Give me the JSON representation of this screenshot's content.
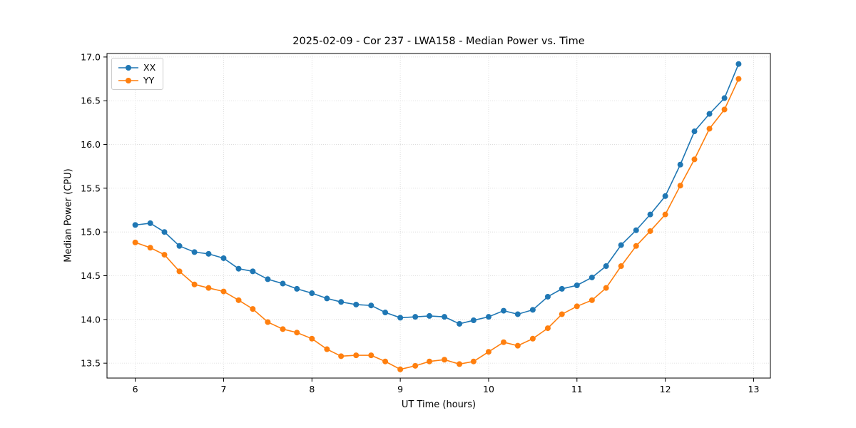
{
  "chart_data": {
    "type": "line",
    "title": "2025-02-09 - Cor 237 - LWA158 - Median Power vs. Time",
    "xlabel": "UT Time (hours)",
    "ylabel": "Median Power (CPU)",
    "xlim": [
      5.68,
      13.19
    ],
    "ylim": [
      13.33,
      17.04
    ],
    "xticks": [
      6,
      7,
      8,
      9,
      10,
      11,
      12,
      13
    ],
    "xtick_labels": [
      "6",
      "7",
      "8",
      "9",
      "10",
      "11",
      "12",
      "13"
    ],
    "yticks": [
      13.5,
      14.0,
      14.5,
      15.0,
      15.5,
      16.0,
      16.5,
      17.0
    ],
    "ytick_labels": [
      "13.5",
      "14.0",
      "14.5",
      "15.0",
      "15.5",
      "16.0",
      "16.5",
      "17.0"
    ],
    "grid": true,
    "legend_position": "upper left",
    "x": [
      6.0,
      6.17,
      6.33,
      6.5,
      6.67,
      6.83,
      7.0,
      7.17,
      7.33,
      7.5,
      7.67,
      7.83,
      8.0,
      8.17,
      8.33,
      8.5,
      8.67,
      8.83,
      9.0,
      9.17,
      9.33,
      9.5,
      9.67,
      9.83,
      10.0,
      10.17,
      10.33,
      10.5,
      10.67,
      10.83,
      11.0,
      11.17,
      11.33,
      11.5,
      11.67,
      11.83,
      12.0,
      12.17,
      12.33,
      12.5,
      12.67,
      12.83
    ],
    "series": [
      {
        "name": "XX",
        "color": "#1f77b4",
        "values": [
          15.08,
          15.1,
          15.0,
          14.84,
          14.77,
          14.75,
          14.7,
          14.58,
          14.55,
          14.46,
          14.41,
          14.35,
          14.3,
          14.24,
          14.2,
          14.17,
          14.16,
          14.08,
          14.02,
          14.03,
          14.04,
          14.03,
          13.95,
          13.99,
          14.03,
          14.1,
          14.06,
          14.11,
          14.26,
          14.35,
          14.39,
          14.48,
          14.61,
          14.85,
          15.02,
          15.2,
          15.41,
          15.77,
          16.15,
          16.35,
          16.53,
          16.92
        ]
      },
      {
        "name": "YY",
        "color": "#ff7f0e",
        "values": [
          14.88,
          14.82,
          14.74,
          14.55,
          14.4,
          14.36,
          14.32,
          14.22,
          14.12,
          13.97,
          13.89,
          13.85,
          13.78,
          13.66,
          13.58,
          13.59,
          13.59,
          13.52,
          13.43,
          13.47,
          13.52,
          13.54,
          13.49,
          13.52,
          13.63,
          13.74,
          13.7,
          13.78,
          13.9,
          14.06,
          14.15,
          14.22,
          14.36,
          14.61,
          14.84,
          15.01,
          15.2,
          15.53,
          15.83,
          16.18,
          16.4,
          16.75
        ]
      }
    ]
  }
}
